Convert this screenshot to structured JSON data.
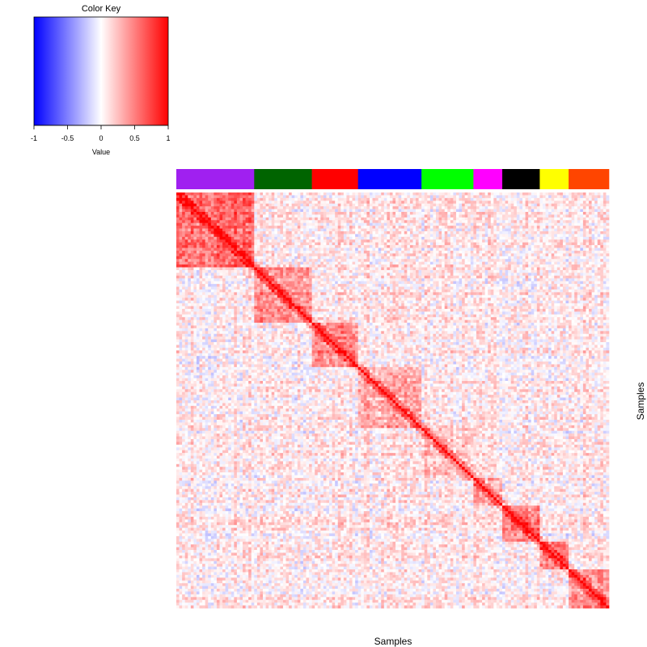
{
  "chart_data": {
    "type": "heatmap",
    "title": "",
    "xlabel": "Samples",
    "ylabel": "Samples",
    "matrix_size": 150,
    "diagonal_value": 1,
    "color_key": {
      "title": "Color Key",
      "label": "Value",
      "range": [
        -1,
        1
      ],
      "ticks": [
        "-1",
        "-0.5",
        "0",
        "0.5",
        "1"
      ],
      "tick_values": [
        -1,
        -0.5,
        0,
        0.5,
        1
      ],
      "colors": {
        "low": "#0000ff",
        "mid": "#ffffff",
        "high": "#ff0000"
      }
    },
    "groups": [
      {
        "color": "#a020f0",
        "count": 27,
        "within_mean": 0.55,
        "name": ""
      },
      {
        "color": "#006400",
        "count": 20,
        "within_mean": 0.4,
        "name": ""
      },
      {
        "color": "#ff0000",
        "count": 16,
        "within_mean": 0.45,
        "name": ""
      },
      {
        "color": "#0000ff",
        "count": 22,
        "within_mean": 0.3,
        "name": ""
      },
      {
        "color": "#00ff00",
        "count": 18,
        "within_mean": 0.2,
        "name": ""
      },
      {
        "color": "#ff00ff",
        "count": 10,
        "within_mean": 0.3,
        "name": ""
      },
      {
        "color": "#000000",
        "count": 13,
        "within_mean": 0.5,
        "name": ""
      },
      {
        "color": "#ffff00",
        "count": 10,
        "within_mean": 0.45,
        "name": ""
      },
      {
        "color": "#ff4500",
        "count": 14,
        "within_mean": 0.4,
        "name": ""
      }
    ]
  }
}
